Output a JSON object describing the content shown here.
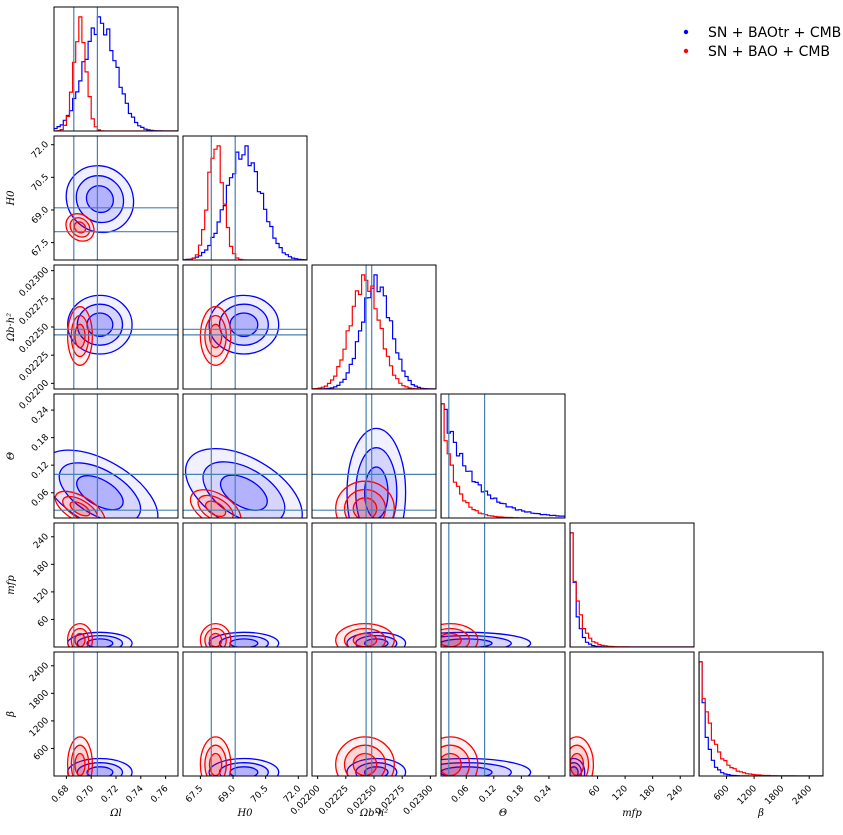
{
  "chart_data": {
    "type": "corner",
    "parameters": [
      {
        "key": "omega_l",
        "label": "Ωl",
        "range": [
          0.67,
          0.77
        ],
        "ticks": [
          0.68,
          0.7,
          0.72,
          0.74,
          0.76
        ],
        "tick_labels": [
          "0.68",
          "0.70",
          "0.72",
          "0.74",
          "0.76"
        ],
        "truth": [
          0.686,
          0.705
        ]
      },
      {
        "key": "h0",
        "label": "H0",
        "range": [
          66.7,
          72.4
        ],
        "ticks": [
          67.5,
          69.0,
          70.5,
          72.0
        ],
        "tick_labels": [
          "67.5",
          "69.0",
          "70.5",
          "72.0"
        ],
        "truth": [
          68.0,
          69.1
        ]
      },
      {
        "key": "omega_b",
        "label": "Ωb·h²",
        "range": [
          0.02195,
          0.02305
        ],
        "ticks": [
          0.022,
          0.02225,
          0.0225,
          0.02275,
          0.023
        ],
        "tick_labels": [
          "0.02200",
          "0.02225",
          "0.02250",
          "0.02275",
          "0.02300"
        ],
        "truth": [
          0.02243,
          0.02248
        ]
      },
      {
        "key": "theta",
        "label": "Θ",
        "range": [
          0.005,
          0.275
        ],
        "ticks": [
          0.06,
          0.12,
          0.18,
          0.24
        ],
        "tick_labels": [
          "0.06",
          "0.12",
          "0.18",
          "0.24"
        ],
        "truth": [
          0.022,
          0.1
        ]
      },
      {
        "key": "m_fp",
        "label": "mfp",
        "range": [
          0,
          270
        ],
        "ticks": [
          60,
          120,
          180,
          240
        ],
        "tick_labels": [
          "60",
          "120",
          "180",
          "240"
        ],
        "truth": []
      },
      {
        "key": "beta",
        "label": "β",
        "range": [
          0,
          2700
        ],
        "ticks": [
          600,
          1200,
          1800,
          2400
        ],
        "tick_labels": [
          "600",
          "1200",
          "1800",
          "2400"
        ],
        "truth": []
      }
    ],
    "series": [
      {
        "name": "SN + BAOtr + CMB",
        "color": "#0000ff",
        "mean": {
          "omega_l": 0.707,
          "h0": 69.5,
          "omega_b": 0.02252,
          "theta": 0.06,
          "m_fp": 8,
          "beta": 80
        },
        "sd": {
          "omega_l": 0.013,
          "h0": 0.8,
          "omega_b": 0.00013,
          "theta": 0.07,
          "m_fp": 12,
          "beta": 150
        }
      },
      {
        "name": "SN + BAO + CMB",
        "color": "#ff0000",
        "mean": {
          "omega_l": 0.691,
          "h0": 68.2,
          "omega_b": 0.02242,
          "theta": 0.025,
          "m_fp": 15,
          "beta": 250
        },
        "sd": {
          "omega_l": 0.005,
          "h0": 0.35,
          "omega_b": 0.00013,
          "theta": 0.03,
          "m_fp": 18,
          "beta": 300
        }
      }
    ],
    "truth_color": "#4682b4",
    "legend_position": "top-right",
    "grid": false
  }
}
